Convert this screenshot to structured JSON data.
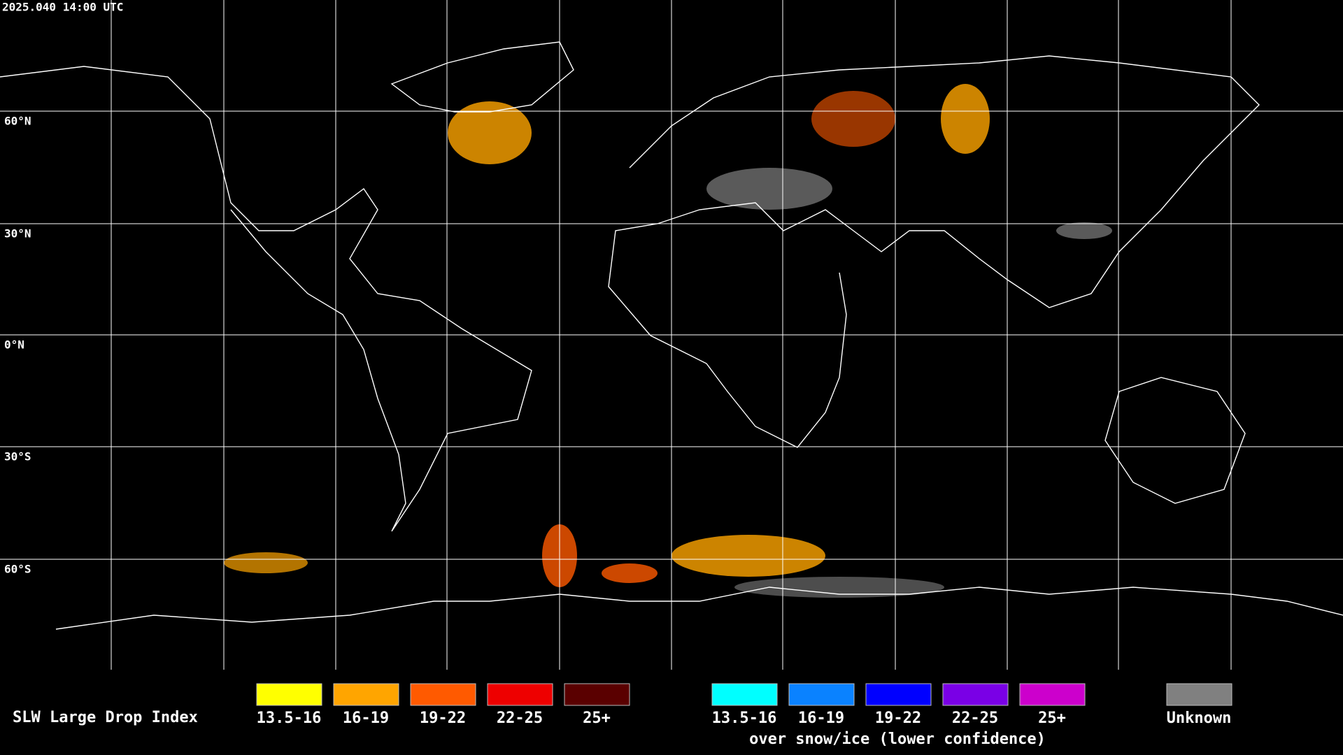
{
  "header": {
    "timestamp": "2025.040 14:00 UTC"
  },
  "latitude_labels": [
    "60°N",
    "30°N",
    "0°N",
    "30°S",
    "60°S"
  ],
  "legend": {
    "title": "SLW Large Drop Index",
    "liquid": [
      {
        "label": "13.5-16",
        "color": "#ffff00"
      },
      {
        "label": "16-19",
        "color": "#ffa500"
      },
      {
        "label": "19-22",
        "color": "#ff5a00"
      },
      {
        "label": "22-25",
        "color": "#ee0000"
      },
      {
        "label": "25+",
        "color": "#5a0000"
      }
    ],
    "ice": [
      {
        "label": "13.5-16",
        "color": "#00ffff"
      },
      {
        "label": "16-19",
        "color": "#0a82ff"
      },
      {
        "label": "19-22",
        "color": "#0000ff"
      },
      {
        "label": "22-25",
        "color": "#7a00e6"
      },
      {
        "label": "25+",
        "color": "#cc00cc"
      }
    ],
    "ice_caption": "over snow/ice (lower confidence)",
    "unknown": {
      "label": "Unknown",
      "color": "#808080"
    }
  }
}
